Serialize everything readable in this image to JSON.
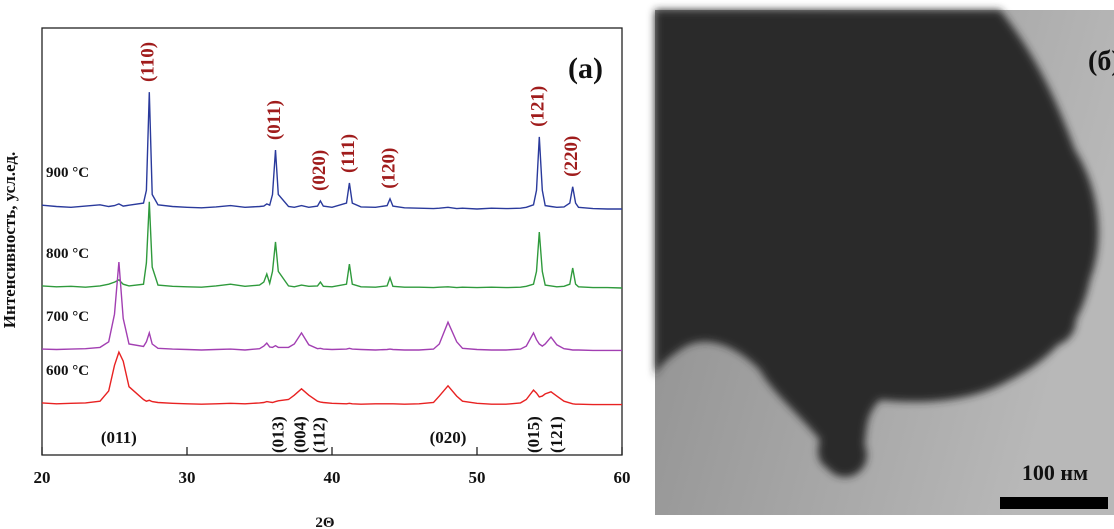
{
  "chart_data": {
    "type": "line",
    "xlabel": "2Θ",
    "ylabel": "Интенсивность, усл.ед.",
    "panel_label": "(а)",
    "xlim": [
      20,
      60
    ],
    "xticks": [
      20,
      30,
      40,
      50,
      60
    ],
    "ylim": [
      0,
      100
    ],
    "x": [
      20,
      21,
      22,
      23,
      24,
      24.6,
      25,
      25.3,
      25.6,
      26,
      27,
      27.2,
      27.4,
      27.6,
      28,
      29,
      30,
      31,
      32,
      33,
      34,
      35,
      35.3,
      35.5,
      35.7,
      35.9,
      36.1,
      36.3,
      37,
      37.4,
      37.9,
      38.4,
      39,
      39.2,
      39.4,
      40,
      41,
      41.2,
      41.4,
      42,
      43,
      43.8,
      44,
      44.2,
      45,
      46,
      47,
      47.4,
      48,
      48.6,
      49,
      50,
      51,
      52,
      53,
      53.4,
      53.9,
      54.1,
      54.3,
      54.5,
      54.7,
      55.1,
      55.5,
      56,
      56.4,
      56.6,
      56.8,
      57,
      58,
      59,
      60
    ],
    "series": [
      {
        "name": "900 °C",
        "color": "#2a3a9c",
        "values": [
          58.5,
          58.2,
          58,
          58.3,
          58.6,
          58.2,
          58.4,
          58.8,
          58.3,
          58.5,
          59,
          62,
          85,
          61,
          58.6,
          58.2,
          58,
          57.9,
          58.1,
          58.4,
          58,
          58.2,
          58.3,
          58.8,
          58.5,
          61,
          71.4,
          61,
          58.2,
          58,
          58.4,
          58,
          58.3,
          59.5,
          58.3,
          58,
          59,
          63.7,
          59,
          58.1,
          58,
          58.4,
          60,
          58.3,
          57.9,
          57.8,
          57.7,
          57.8,
          58,
          57.7,
          57.8,
          57.6,
          57.8,
          57.7,
          57.8,
          58,
          58.6,
          62,
          74.5,
          62,
          58.4,
          58.2,
          58,
          58.1,
          59,
          62.8,
          59,
          58,
          57.7,
          57.6,
          57.6
        ]
      },
      {
        "name": "800 °C",
        "color": "#2f9a3c",
        "values": [
          39.6,
          39.4,
          39.5,
          39.3,
          39.6,
          40,
          40.5,
          41,
          40,
          39.6,
          40,
          45,
          59.3,
          44,
          39.8,
          39.5,
          39.4,
          39.3,
          39.6,
          40,
          39.5,
          39.8,
          40.5,
          42.4,
          40.2,
          43,
          49.9,
          43,
          39.6,
          39.4,
          39.8,
          39.5,
          39.6,
          40.5,
          39.5,
          39.4,
          40,
          44.7,
          40,
          39.4,
          39.3,
          39.6,
          41.5,
          39.5,
          39.3,
          39.3,
          39.2,
          39.3,
          39.4,
          39.2,
          39.3,
          39.2,
          39.3,
          39.2,
          39.3,
          39.5,
          40,
          43,
          52.2,
          43,
          39.8,
          39.6,
          39.4,
          39.5,
          40,
          43.8,
          40,
          39.4,
          39.2,
          39.2,
          39.1
        ]
      },
      {
        "name": "700 °C",
        "color": "#a23fb2",
        "values": [
          24.8,
          24.7,
          24.8,
          24.9,
          25.2,
          26.5,
          33,
          45.2,
          32,
          26,
          25.4,
          26.5,
          28.6,
          26,
          25,
          24.8,
          24.7,
          24.6,
          24.7,
          24.8,
          24.6,
          24.9,
          25.5,
          26.2,
          25.3,
          25.2,
          25.6,
          25.2,
          25.2,
          26,
          28.6,
          25.8,
          24.9,
          25,
          24.8,
          24.7,
          24.8,
          25,
          24.8,
          24.7,
          24.6,
          24.7,
          24.8,
          24.7,
          24.6,
          24.6,
          24.8,
          26,
          31.1,
          26.5,
          25,
          24.7,
          24.6,
          24.6,
          24.8,
          25.5,
          28.6,
          27,
          26,
          25.5,
          26,
          27.6,
          25.8,
          24.9,
          24.7,
          24.6,
          24.6,
          24.6,
          24.5,
          24.5,
          24.5
        ]
      },
      {
        "name": "600 °C",
        "color": "#e82222",
        "values": [
          12.2,
          12,
          12.1,
          12.2,
          12.6,
          15,
          21,
          24.1,
          22,
          16,
          13,
          12.6,
          12.8,
          12.5,
          12.3,
          12.1,
          12,
          11.9,
          12,
          12.1,
          12,
          12.2,
          12.3,
          12.5,
          12.4,
          12.3,
          12.5,
          12.7,
          13,
          14,
          15.5,
          14,
          12.6,
          12.4,
          12.3,
          12.1,
          12,
          12.1,
          12,
          11.9,
          12,
          12,
          12,
          12,
          11.9,
          12,
          12.3,
          13.8,
          16.2,
          13.8,
          12.6,
          12.1,
          11.9,
          11.9,
          12.2,
          13,
          15.2,
          14.5,
          13.6,
          13.8,
          14.3,
          14.8,
          13.8,
          12.6,
          12.2,
          12,
          11.9,
          11.9,
          11.8,
          11.8,
          11.8
        ]
      }
    ],
    "peak_labels_top": [
      {
        "text": "(110)",
        "x": 27.4
      },
      {
        "text": "(011)",
        "x": 36.1
      },
      {
        "text": "(020)",
        "x": 39.2
      },
      {
        "text": "(111)",
        "x": 41.2
      },
      {
        "text": "(120)",
        "x": 44.0
      },
      {
        "text": "(121)",
        "x": 54.3
      },
      {
        "text": "(220)",
        "x": 56.6
      }
    ],
    "peak_labels_bottom": [
      {
        "text": "(011)",
        "x": 25.3
      },
      {
        "text": "(013)",
        "x": 36.4
      },
      {
        "text": "(004)",
        "x": 37.9
      },
      {
        "text": "(112)",
        "x": 39.2
      },
      {
        "text": "(020)",
        "x": 48.0
      },
      {
        "text": "(015)",
        "x": 54.0
      },
      {
        "text": "(121)",
        "x": 55.6
      }
    ]
  },
  "image": {
    "panel_label": "(б)",
    "scale_bar": "100 нм"
  }
}
